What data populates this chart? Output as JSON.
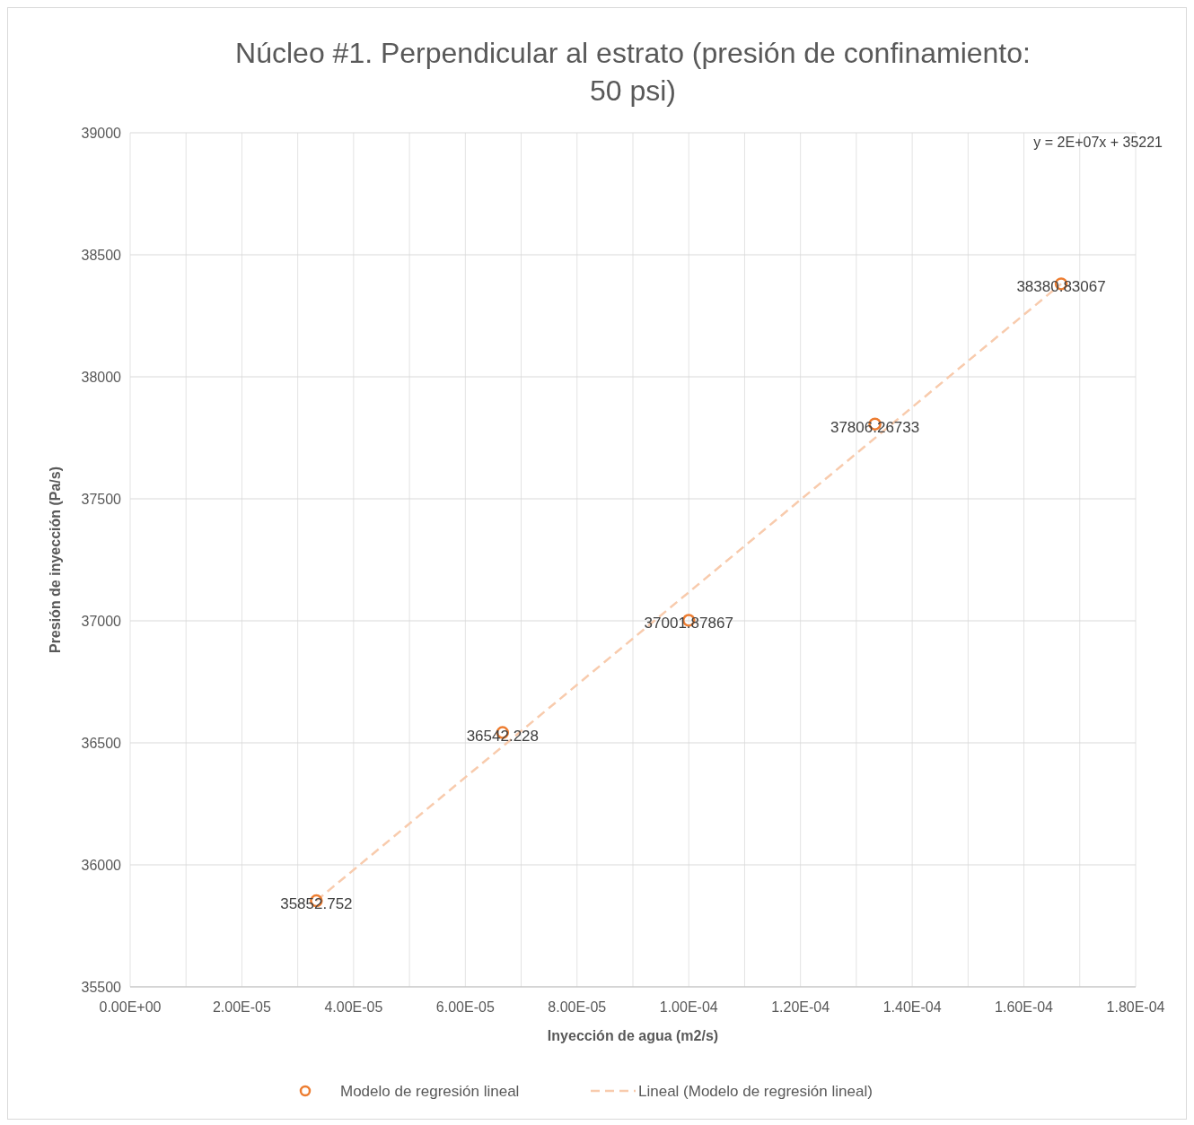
{
  "chart_data": {
    "type": "scatter",
    "title": "Núcleo #1. Perpendicular al estrato (presión de confinamiento: 50 psi)",
    "xlabel": "Inyección de agua (m2/s)",
    "ylabel": "Presión de inyección (Pa/s)",
    "x": [
      3.333e-05,
      6.667e-05,
      0.0001,
      0.00013333,
      0.00016667
    ],
    "series": [
      {
        "name": "Modelo de regresión lineal",
        "color": "#ed7d31",
        "values": [
          35852.752,
          36542.228,
          37001.87867,
          37806.26733,
          38380.83067
        ],
        "marker": "circle",
        "data_labels": true
      },
      {
        "name": "Lineal (Modelo de regresión lineal)",
        "type": "line",
        "color": "#f8cbad",
        "x": [
          3.333e-05,
          0.00016667
        ],
        "values": [
          35853,
          38381
        ],
        "line_style": "dashed",
        "marker": "none"
      }
    ],
    "xlim": [
      0,
      0.00018
    ],
    "xticks": [
      {
        "value": 0,
        "label": "0.00E+00"
      },
      {
        "value": 1e-05,
        "label": null
      },
      {
        "value": 2e-05,
        "label": "2.00E-05"
      },
      {
        "value": 3e-05,
        "label": null
      },
      {
        "value": 4e-05,
        "label": "4.00E-05"
      },
      {
        "value": 5e-05,
        "label": null
      },
      {
        "value": 6e-05,
        "label": "6.00E-05"
      },
      {
        "value": 7e-05,
        "label": null
      },
      {
        "value": 8e-05,
        "label": "8.00E-05"
      },
      {
        "value": 9e-05,
        "label": null
      },
      {
        "value": 0.0001,
        "label": "1.00E-04"
      },
      {
        "value": 0.00011,
        "label": null
      },
      {
        "value": 0.00012,
        "label": "1.20E-04"
      },
      {
        "value": 0.00013,
        "label": null
      },
      {
        "value": 0.00014,
        "label": "1.40E-04"
      },
      {
        "value": 0.00015,
        "label": null
      },
      {
        "value": 0.00016,
        "label": "1.60E-04"
      },
      {
        "value": 0.00017,
        "label": null
      },
      {
        "value": 0.00018,
        "label": "1.80E-04"
      }
    ],
    "ylim": [
      35500,
      39000
    ],
    "yticks": [
      35500,
      36000,
      36500,
      37000,
      37500,
      38000,
      38500,
      39000
    ],
    "grid": true,
    "legend": "bottom",
    "annotations": [
      "y = 2E+07x + 35221"
    ]
  }
}
